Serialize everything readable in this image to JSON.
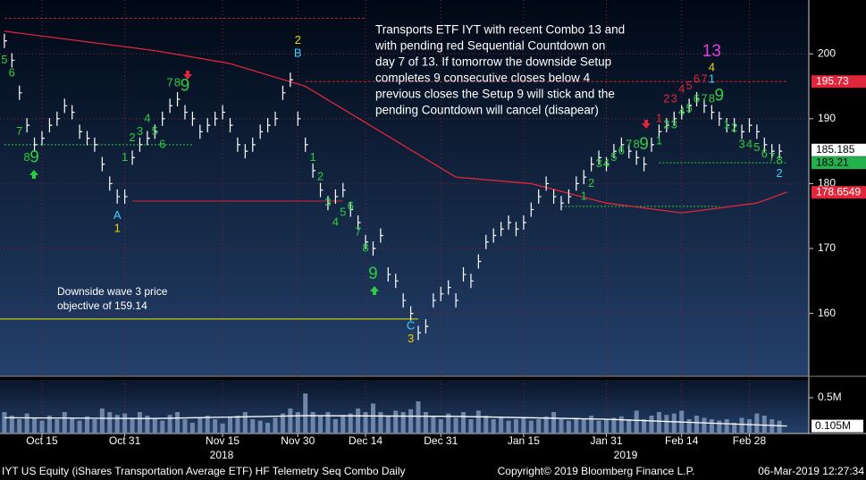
{
  "chart_data": {
    "type": "ohlc",
    "xlim": [
      -0.58,
      106.9
    ],
    "ylim": [
      150.3,
      208.3
    ],
    "yticks": [
      160,
      170,
      180,
      190,
      200
    ],
    "xticks": [
      {
        "value": 5,
        "label": "Oct 15"
      },
      {
        "value": 16,
        "label": "Oct 31"
      },
      {
        "value": 29,
        "label": "Nov 15"
      },
      {
        "value": 39,
        "label": "Nov 30"
      },
      {
        "value": 48,
        "label": "Dec 14"
      },
      {
        "value": 58,
        "label": "Dec 31"
      },
      {
        "value": 69,
        "label": "Jan 15"
      },
      {
        "value": 80,
        "label": "Jan 31"
      },
      {
        "value": 90,
        "label": "Feb 14"
      },
      {
        "value": 99,
        "label": "Feb 28"
      }
    ],
    "years": [
      {
        "value": 29,
        "label": "2018"
      },
      {
        "value": 80,
        "label": "2019"
      }
    ],
    "grid": true,
    "close": [
      202,
      199,
      194,
      189,
      186,
      187,
      189,
      190,
      192,
      191,
      188,
      187,
      186,
      183,
      180,
      178,
      178,
      184,
      186,
      187,
      188,
      190,
      192,
      193,
      191,
      190,
      188,
      189,
      190,
      191,
      189,
      186,
      185,
      186,
      188,
      189,
      190,
      194,
      196,
      190,
      186,
      182,
      179,
      177,
      178,
      179,
      176,
      174,
      171,
      170,
      172,
      166,
      165,
      162,
      160,
      157,
      158,
      162,
      163,
      164,
      162,
      166,
      165,
      168,
      171,
      172,
      173,
      174,
      173,
      174,
      176,
      178,
      180,
      178,
      177,
      178,
      180,
      181,
      183,
      184,
      183,
      185,
      186,
      185,
      184,
      183,
      186,
      188,
      189,
      190,
      191,
      192,
      193,
      192,
      191,
      190,
      189,
      189,
      188,
      189,
      188,
      186,
      185,
      185
    ],
    "bar_color": "#ffffff",
    "average": {
      "color": "#e0263a",
      "x": [
        0,
        10,
        20,
        30,
        40,
        50,
        60,
        70,
        80,
        90,
        100,
        104
      ],
      "values": [
        203.5,
        202,
        200.5,
        198.5,
        195,
        188,
        181,
        180,
        177,
        175.5,
        177,
        178.7
      ]
    },
    "levels": [
      {
        "value": 205.5,
        "from": 0,
        "to": 48,
        "color": "#c0262f",
        "style": "dashed"
      },
      {
        "value": 195.73,
        "from": 40,
        "to": 104,
        "color": "#c0262f",
        "style": "dashed"
      },
      {
        "value": 177.3,
        "from": 17,
        "to": 45,
        "color": "#d0262f",
        "style": "solid"
      },
      {
        "value": 186,
        "from": 0,
        "to": 25,
        "color": "#2ecc40",
        "style": "dotted"
      },
      {
        "value": 183.21,
        "from": 87,
        "to": 104,
        "color": "#2ecc40",
        "style": "dotted"
      },
      {
        "value": 176.5,
        "from": 74,
        "to": 95,
        "color": "#2ecc40",
        "style": "dotted"
      },
      {
        "value": 159.14,
        "from": -0.58,
        "to": 55,
        "color": "#e8e800",
        "style": "solid"
      }
    ],
    "price_labels": [
      {
        "value": 195.73,
        "label": "195.73",
        "bg": "#e0263a",
        "fg": "#ffffff"
      },
      {
        "value": 185.185,
        "label": "185.185",
        "bg": "#ffffff",
        "fg": "#000000"
      },
      {
        "value": 183.21,
        "label": "183.21",
        "bg": "#22b14c",
        "fg": "#000000"
      },
      {
        "value": 178.6549,
        "label": "178.6549",
        "bg": "#e0263a",
        "fg": "#ffffff"
      }
    ],
    "annotations": [
      {
        "text": "5",
        "x": 0,
        "y": 199,
        "color": "#2ecc40"
      },
      {
        "text": "6",
        "x": 1,
        "y": 197,
        "color": "#2ecc40"
      },
      {
        "text": "7",
        "x": 2,
        "y": 188,
        "color": "#2ecc40"
      },
      {
        "text": "8",
        "x": 3,
        "y": 184,
        "color": "#2ecc40"
      },
      {
        "text": "9",
        "x": 4,
        "y": 184,
        "color": "#2ecc40",
        "big": true
      },
      {
        "text": "A",
        "x": 15,
        "y": 175,
        "color": "#3fd0ff"
      },
      {
        "text": "1",
        "x": 15,
        "y": 173,
        "color": "#f0d000"
      },
      {
        "text": "1",
        "x": 16,
        "y": 184,
        "color": "#2ecc40"
      },
      {
        "text": "2",
        "x": 17,
        "y": 187,
        "color": "#2ecc40"
      },
      {
        "text": "3",
        "x": 18,
        "y": 188,
        "color": "#2ecc40"
      },
      {
        "text": "4",
        "x": 19,
        "y": 190,
        "color": "#2ecc40"
      },
      {
        "text": "5",
        "x": 20,
        "y": 188,
        "color": "#2ecc40"
      },
      {
        "text": "6",
        "x": 21,
        "y": 186,
        "color": "#2ecc40"
      },
      {
        "text": "7",
        "x": 22,
        "y": 195.5,
        "color": "#2ecc40"
      },
      {
        "text": "8",
        "x": 23,
        "y": 195.5,
        "color": "#2ecc40"
      },
      {
        "text": "9",
        "x": 24,
        "y": 195,
        "color": "#2ecc40",
        "big": true
      },
      {
        "text": "2",
        "x": 39,
        "y": 202,
        "color": "#f0d000"
      },
      {
        "text": "B",
        "x": 39,
        "y": 200,
        "color": "#3fd0ff"
      },
      {
        "text": "1",
        "x": 41,
        "y": 184,
        "color": "#2ecc40"
      },
      {
        "text": "2",
        "x": 42,
        "y": 181,
        "color": "#2ecc40"
      },
      {
        "text": "3",
        "x": 43,
        "y": 177,
        "color": "#2ecc40"
      },
      {
        "text": "4",
        "x": 44,
        "y": 174,
        "color": "#2ecc40"
      },
      {
        "text": "5",
        "x": 45,
        "y": 175.5,
        "color": "#2ecc40"
      },
      {
        "text": "6",
        "x": 46,
        "y": 176.5,
        "color": "#2ecc40"
      },
      {
        "text": "7",
        "x": 47,
        "y": 172.5,
        "color": "#2ecc40"
      },
      {
        "text": "8",
        "x": 48,
        "y": 170,
        "color": "#2ecc40"
      },
      {
        "text": "9",
        "x": 49,
        "y": 166,
        "color": "#2ecc40",
        "big": true
      },
      {
        "text": "C",
        "x": 54,
        "y": 158,
        "color": "#3fd0ff"
      },
      {
        "text": "3",
        "x": 54,
        "y": 156,
        "color": "#f0d000"
      },
      {
        "text": "1",
        "x": 77,
        "y": 178,
        "color": "#2ecc40"
      },
      {
        "text": "2",
        "x": 78,
        "y": 180,
        "color": "#2ecc40"
      },
      {
        "text": "3",
        "x": 79,
        "y": 183,
        "color": "#2ecc40"
      },
      {
        "text": "4",
        "x": 80,
        "y": 183,
        "color": "#2ecc40"
      },
      {
        "text": "5",
        "x": 81,
        "y": 184,
        "color": "#2ecc40"
      },
      {
        "text": "6",
        "x": 82,
        "y": 185,
        "color": "#2ecc40"
      },
      {
        "text": "7",
        "x": 83,
        "y": 186,
        "color": "#2ecc40"
      },
      {
        "text": "8",
        "x": 84,
        "y": 186,
        "color": "#2ecc40"
      },
      {
        "text": "9",
        "x": 85,
        "y": 186,
        "color": "#2ecc40",
        "big": true
      },
      {
        "text": "1",
        "x": 87,
        "y": 190,
        "color": "#e0263a"
      },
      {
        "text": "2",
        "x": 88,
        "y": 193,
        "color": "#e0263a"
      },
      {
        "text": "3",
        "x": 89,
        "y": 193,
        "color": "#e0263a"
      },
      {
        "text": "4",
        "x": 90,
        "y": 194.5,
        "color": "#e0263a"
      },
      {
        "text": "5",
        "x": 91,
        "y": 195,
        "color": "#e0263a"
      },
      {
        "text": "6",
        "x": 92,
        "y": 196,
        "color": "#e0263a"
      },
      {
        "text": "7",
        "x": 93,
        "y": 196,
        "color": "#e0263a"
      },
      {
        "text": "1",
        "x": 87,
        "y": 186.5,
        "color": "#2ecc40"
      },
      {
        "text": "2",
        "x": 88,
        "y": 189,
        "color": "#2ecc40"
      },
      {
        "text": "3",
        "x": 89,
        "y": 189,
        "color": "#2ecc40"
      },
      {
        "text": "4",
        "x": 90,
        "y": 191,
        "color": "#2ecc40"
      },
      {
        "text": "5",
        "x": 91,
        "y": 191.5,
        "color": "#2ecc40"
      },
      {
        "text": "6",
        "x": 92,
        "y": 193,
        "color": "#2ecc40"
      },
      {
        "text": "7",
        "x": 93,
        "y": 193,
        "color": "#2ecc40"
      },
      {
        "text": "8",
        "x": 94,
        "y": 193,
        "color": "#2ecc40"
      },
      {
        "text": "9",
        "x": 95,
        "y": 193.5,
        "color": "#2ecc40",
        "big": true
      },
      {
        "text": "13",
        "x": 94,
        "y": 200.3,
        "color": "#e040e0",
        "big": true
      },
      {
        "text": "4",
        "x": 94,
        "y": 197.8,
        "color": "#f0d000"
      },
      {
        "text": "1",
        "x": 94,
        "y": 196,
        "color": "#3fd0ff"
      },
      {
        "text": "1",
        "x": 96,
        "y": 189,
        "color": "#2ecc40"
      },
      {
        "text": "2",
        "x": 97,
        "y": 188.5,
        "color": "#2ecc40"
      },
      {
        "text": "3",
        "x": 98,
        "y": 186,
        "color": "#2ecc40"
      },
      {
        "text": "4",
        "x": 99,
        "y": 186,
        "color": "#2ecc40"
      },
      {
        "text": "5",
        "x": 100,
        "y": 185.5,
        "color": "#2ecc40"
      },
      {
        "text": "6",
        "x": 101,
        "y": 184.5,
        "color": "#2ecc40"
      },
      {
        "text": "7",
        "x": 102,
        "y": 184,
        "color": "#2ecc40"
      },
      {
        "text": "8",
        "x": 103,
        "y": 183.5,
        "color": "#2ecc40"
      },
      {
        "text": "2",
        "x": 103,
        "y": 181.5,
        "color": "#3fd0ff"
      }
    ],
    "note_lines": [
      "Transports ETF IYT with recent Combo 13 and",
      "with pending red Sequential Countdown on",
      "day 7 of 13.  If tomorrow the downside Setup",
      "completes 9 consecutive closes below 4",
      "previous closes the Setup 9 will stick and the",
      "pending Countdown will cancel (disapear)"
    ],
    "objective_lines": [
      "Downside wave 3 price",
      "objective of 159.14"
    ],
    "volume": {
      "color": "#6f86a8",
      "values": [
        0.3,
        0.25,
        0.2,
        0.28,
        0.22,
        0.18,
        0.25,
        0.2,
        0.3,
        0.22,
        0.18,
        0.24,
        0.2,
        0.35,
        0.3,
        0.26,
        0.28,
        0.22,
        0.3,
        0.25,
        0.2,
        0.18,
        0.26,
        0.3,
        0.2,
        0.15,
        0.22,
        0.25,
        0.2,
        0.14,
        0.22,
        0.25,
        0.3,
        0.2,
        0.18,
        0.15,
        0.22,
        0.28,
        0.35,
        0.3,
        0.56,
        0.3,
        0.25,
        0.3,
        0.2,
        0.26,
        0.28,
        0.35,
        0.3,
        0.42,
        0.3,
        0.25,
        0.32,
        0.3,
        0.34,
        0.45,
        0.3,
        0.25,
        0.2,
        0.28,
        0.22,
        0.3,
        0.2,
        0.32,
        0.25,
        0.2,
        0.22,
        0.18,
        0.2,
        0.22,
        0.18,
        0.2,
        0.24,
        0.3,
        0.2,
        0.18,
        0.22,
        0.2,
        0.25,
        0.18,
        0.2,
        0.22,
        0.24,
        0.2,
        0.32,
        0.2,
        0.25,
        0.3,
        0.26,
        0.28,
        0.32,
        0.2,
        0.25,
        0.22,
        0.2,
        0.18,
        0.2,
        0.15,
        0.22,
        0.2,
        0.28,
        0.25,
        0.2,
        0.18
      ],
      "ylim": [
        0,
        0.75
      ],
      "yticks": [
        {
          "value": 0.5,
          "label": "0.5M"
        }
      ],
      "average": {
        "x": [
          0,
          20,
          40,
          60,
          80,
          104
        ],
        "values": [
          0.22,
          0.21,
          0.25,
          0.24,
          0.2,
          0.105
        ]
      },
      "average_label": {
        "value": 0.105,
        "label": "0.105M"
      }
    },
    "footer": {
      "left": "IYT US Equity (iShares Transportation Average ETF) HF Telemetry Seq Combo  Daily",
      "center": "Copyright© 2019 Bloomberg Finance L.P.",
      "right": "06-Mar-2019 12:27:34"
    }
  }
}
